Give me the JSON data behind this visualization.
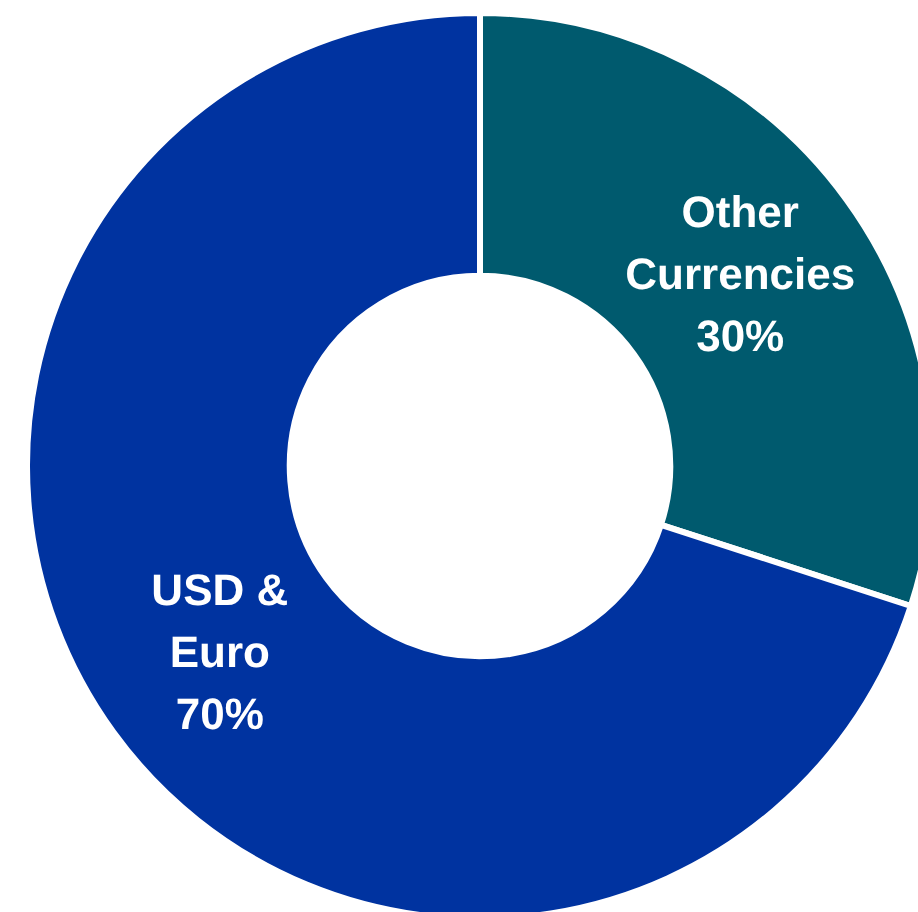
{
  "chart_data": {
    "type": "donut",
    "categories": [
      "Other Currencies",
      "USD & Euro"
    ],
    "values": [
      30,
      70
    ],
    "colors": [
      "#005a6e",
      "#0033a0"
    ],
    "value_labels": [
      "30%",
      "70%"
    ],
    "legend": false
  }
}
